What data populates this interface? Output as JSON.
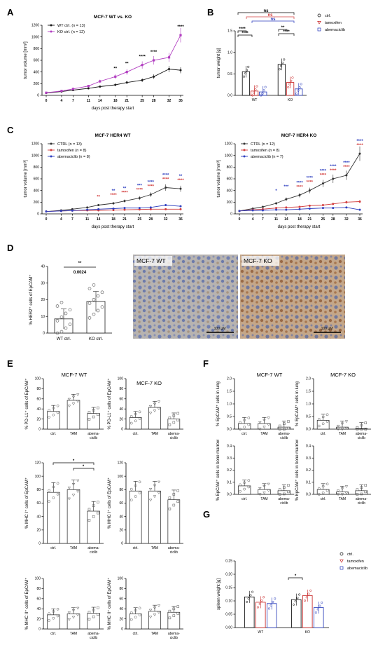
{
  "panels": {
    "A": "A",
    "B": "B",
    "C": "C",
    "D": "D",
    "E": "E",
    "F": "F",
    "G": "G"
  },
  "colors": {
    "wt": "#1a1a1a",
    "ko": "#b23fc1",
    "ctrl": "#333333",
    "tam": "#d23c3c",
    "abema": "#2e3fbf",
    "bar_ctrl": "#000000",
    "bar_tam": "#c51a1a",
    "bar_abema": "#1f33b8",
    "ns_black": "#000000",
    "ns_red": "#d23c3c",
    "ns_blue": "#2e3fbf"
  },
  "stars": {
    "s2": "**",
    "s4": "****",
    "s1": "*",
    "s3": "***",
    "ns": "ns"
  },
  "micrographs": [
    {
      "label": "MCF-7 WT",
      "scale": "100 µM"
    },
    {
      "label": "MCF-7 KO",
      "scale": "100 µM"
    }
  ],
  "chart_data": [
    {
      "id": "A",
      "type": "line",
      "title": "MCF-7 WT vs. KO",
      "xlabel": "days post therapy start",
      "ylabel": "tumor volume [mm³]",
      "x": [
        0,
        4,
        7,
        11,
        14,
        18,
        21,
        25,
        28,
        32,
        35
      ],
      "xticks": [
        "0",
        "4",
        "7",
        "11",
        "14",
        "18",
        "21",
        "25",
        "28",
        "32",
        "35"
      ],
      "ylim": [
        0,
        1200
      ],
      "yticks": [
        "0",
        "200",
        "400",
        "600",
        "800",
        "1000",
        "1200"
      ],
      "series": [
        {
          "name": "WT ctrl. (n = 13)",
          "values": [
            40,
            65,
            90,
            120,
            150,
            180,
            220,
            260,
            320,
            450,
            430
          ]
        },
        {
          "name": "KO ctrl. (n = 12)",
          "values": [
            45,
            75,
            110,
            160,
            240,
            320,
            400,
            520,
            600,
            650,
            1030
          ]
        }
      ],
      "significance": [
        {
          "x": 18,
          "label": "**"
        },
        {
          "x": 21,
          "label": "**"
        },
        {
          "x": 25,
          "label": "****"
        },
        {
          "x": 28,
          "label": "****"
        },
        {
          "x": 35,
          "label": "****"
        }
      ]
    },
    {
      "id": "B",
      "type": "bar",
      "ylabel": "tumor weight [g]",
      "categories": [
        "WT",
        "KO"
      ],
      "ylim": [
        0,
        1.5
      ],
      "yticks": [
        "0.0",
        "0.5",
        "1.0",
        "1.5"
      ],
      "series": [
        {
          "name": "ctrl.",
          "values": [
            0.55,
            0.72
          ]
        },
        {
          "name": "tamoxifen",
          "values": [
            0.1,
            0.3
          ]
        },
        {
          "name": "abemaciclib",
          "values": [
            0.08,
            0.15
          ]
        }
      ],
      "brackets": [
        "ns",
        "ns",
        "ns",
        "****",
        "****",
        "**",
        "****"
      ]
    },
    {
      "id": "C1",
      "type": "line",
      "title": "MCF-7 HER4 WT",
      "xlabel": "days post therapy start",
      "ylabel": "tumor volume [mm³]",
      "x": [
        0,
        4,
        7,
        11,
        14,
        18,
        21,
        25,
        28,
        32,
        36
      ],
      "xticks": [
        "0",
        "4",
        "7",
        "11",
        "14",
        "18",
        "21",
        "25",
        "28",
        "32",
        "36"
      ],
      "ylim": [
        0,
        1200
      ],
      "yticks": [
        "0",
        "200",
        "400",
        "600",
        "800",
        "1000",
        "1200"
      ],
      "series": [
        {
          "name": "CTRL (n = 13)",
          "values": [
            40,
            60,
            80,
            110,
            150,
            180,
            220,
            270,
            330,
            450,
            430
          ]
        },
        {
          "name": "tamoxifen (n = 8)",
          "values": [
            40,
            50,
            55,
            60,
            60,
            65,
            70,
            75,
            80,
            80,
            80
          ]
        },
        {
          "name": "abemaciclib (n = 8)",
          "values": [
            40,
            50,
            55,
            70,
            80,
            90,
            100,
            100,
            110,
            150,
            130
          ]
        }
      ],
      "significance_blue": [
        {
          "x": 18,
          "label": "**"
        },
        {
          "x": 21,
          "label": "**"
        },
        {
          "x": 25,
          "label": "***"
        },
        {
          "x": 28,
          "label": "****"
        },
        {
          "x": 32,
          "label": "****"
        },
        {
          "x": 36,
          "label": "**"
        }
      ],
      "significance_red": [
        {
          "x": 14,
          "label": "**"
        },
        {
          "x": 18,
          "label": "****"
        },
        {
          "x": 21,
          "label": "****"
        },
        {
          "x": 25,
          "label": "****"
        },
        {
          "x": 28,
          "label": "****"
        },
        {
          "x": 32,
          "label": "****"
        },
        {
          "x": 36,
          "label": "****"
        }
      ]
    },
    {
      "id": "C2",
      "type": "line",
      "title": "MCF-7 HER4 KO",
      "xlabel": "days post therapy start",
      "ylabel": "tumor volume [mm³]",
      "x": [
        0,
        4,
        7,
        11,
        14,
        18,
        21,
        25,
        28,
        32,
        36
      ],
      "xticks": [
        "0",
        "4",
        "7",
        "11",
        "14",
        "18",
        "21",
        "25",
        "28",
        "32",
        "36"
      ],
      "ylim": [
        0,
        1200
      ],
      "yticks": [
        "0",
        "200",
        "400",
        "600",
        "800",
        "1000",
        "1200"
      ],
      "series": [
        {
          "name": "CTRL (n = 12)",
          "values": [
            50,
            90,
            120,
            180,
            250,
            320,
            400,
            520,
            600,
            660,
            1030
          ]
        },
        {
          "name": "tamoxifen (n = 8)",
          "values": [
            50,
            70,
            80,
            100,
            110,
            120,
            140,
            150,
            170,
            200,
            210
          ]
        },
        {
          "name": "abemaciclib (n = 7)",
          "values": [
            50,
            60,
            60,
            70,
            70,
            80,
            90,
            100,
            100,
            110,
            70
          ]
        }
      ],
      "significance_blue": [
        {
          "x": 11,
          "label": "*"
        },
        {
          "x": 14,
          "label": "***"
        },
        {
          "x": 18,
          "label": "****"
        },
        {
          "x": 21,
          "label": "****"
        },
        {
          "x": 25,
          "label": "****"
        },
        {
          "x": 28,
          "label": "****"
        },
        {
          "x": 32,
          "label": "****"
        },
        {
          "x": 36,
          "label": "****"
        }
      ],
      "significance_red": [
        {
          "x": 18,
          "label": "****"
        },
        {
          "x": 21,
          "label": "****"
        },
        {
          "x": 25,
          "label": "****"
        },
        {
          "x": 28,
          "label": "****"
        },
        {
          "x": 32,
          "label": "****"
        },
        {
          "x": 36,
          "label": "****"
        }
      ]
    },
    {
      "id": "D",
      "type": "bar",
      "ylabel": "% HER2⁺ cells of EpCAM⁺",
      "categories": [
        "WT ctrl.",
        "KO ctrl."
      ],
      "values": [
        8.5,
        19
      ],
      "ylim": [
        0,
        40
      ],
      "yticks": [
        "0",
        "10",
        "20",
        "30",
        "40"
      ],
      "significance": {
        "stars": "**",
        "p": "0.0024"
      }
    },
    {
      "id": "E1",
      "type": "bar",
      "title": "MCF-7 WT",
      "ylabel": "% PD-L1⁺ cells of EpCAM⁺",
      "categories": [
        "ctrl.",
        "TAM",
        "abema-ciclib"
      ],
      "values": [
        35,
        57,
        31
      ],
      "ylim": [
        0,
        100
      ],
      "yticks": [
        "0",
        "20",
        "40",
        "60",
        "80",
        "100"
      ]
    },
    {
      "id": "E2",
      "type": "bar",
      "title": "MCF-7 KO",
      "ylabel": "% PD-L1⁺ cells of EpCAM⁺",
      "categories": [
        "ctrl.",
        "TAM",
        "abema-ciclib"
      ],
      "values": [
        23,
        43,
        20
      ],
      "ylim": [
        0,
        100
      ],
      "yticks": [
        "0",
        "20",
        "40",
        "60",
        "80",
        "100"
      ]
    },
    {
      "id": "E3",
      "type": "bar",
      "ylabel": "% MHC I⁺ cells of EpCAM⁺",
      "categories": [
        "ctrl.",
        "TAM",
        "abema-ciclib"
      ],
      "values": [
        76,
        80,
        48
      ],
      "ylim": [
        0,
        120
      ],
      "yticks": [
        "0",
        "20",
        "40",
        "60",
        "80",
        "100",
        "120"
      ],
      "brackets": [
        "*",
        "*"
      ]
    },
    {
      "id": "E4",
      "type": "bar",
      "ylabel": "% MHC I⁺ cells of EpCAM⁺",
      "categories": [
        "ctrl.",
        "TAM",
        "abema-ciclib"
      ],
      "values": [
        78,
        78,
        65
      ],
      "ylim": [
        0,
        120
      ],
      "yticks": [
        "0",
        "20",
        "40",
        "60",
        "80",
        "100",
        "120"
      ]
    },
    {
      "id": "E5",
      "type": "bar",
      "ylabel": "% MHC II⁺ cells of EpCAM⁺",
      "categories": [
        "ctrl.",
        "TAM",
        "abema-ciclib"
      ],
      "values": [
        28,
        30,
        31
      ],
      "ylim": [
        0,
        100
      ],
      "yticks": [
        "0",
        "20",
        "40",
        "60",
        "80",
        "100"
      ]
    },
    {
      "id": "E6",
      "type": "bar",
      "ylabel": "% MHC II⁺ cells of EpCAM⁺",
      "categories": [
        "ctrl.",
        "TAM",
        "abema-ciclib"
      ],
      "values": [
        30,
        35,
        33
      ],
      "ylim": [
        0,
        100
      ],
      "yticks": [
        "0",
        "20",
        "40",
        "60",
        "80",
        "100"
      ]
    },
    {
      "id": "F1",
      "type": "bar",
      "title": "MCF-7 WT",
      "ylabel": "% EpCAM⁺ cells in lung",
      "categories": [
        "ctrl.",
        "TAM",
        "abema-ciclib"
      ],
      "values": [
        0.22,
        0.22,
        0.08
      ],
      "ylim": [
        0,
        2.0
      ],
      "yticks": [
        "0.0",
        "0.5",
        "1.0",
        "1.5",
        "2.0"
      ]
    },
    {
      "id": "F2",
      "type": "bar",
      "title": "MCF-7 KO",
      "ylabel": "% EpCAM⁺ cells in lung",
      "categories": [
        "ctrl.",
        "TAM",
        "abema-ciclib"
      ],
      "values": [
        0.35,
        0.08,
        0.02
      ],
      "ylim": [
        0,
        2.0
      ],
      "yticks": [
        "0.0",
        "0.5",
        "1.0",
        "1.5",
        "2.0"
      ]
    },
    {
      "id": "F3",
      "type": "bar",
      "ylabel": "% EpCAM⁺ cells in bone marrow",
      "categories": [
        "ctrl.",
        "TAM",
        "abema-ciclib"
      ],
      "values": [
        0.07,
        0.04,
        0.03
      ],
      "ylim": [
        0,
        0.4
      ],
      "yticks": [
        "0.0",
        "0.1",
        "0.2",
        "0.3",
        "0.4"
      ]
    },
    {
      "id": "F4",
      "type": "bar",
      "ylabel": "% EpCAM⁺ cells in bone marrow",
      "categories": [
        "ctrl.",
        "TAM",
        "abema-ciclib"
      ],
      "values": [
        0.04,
        0.02,
        0.03
      ],
      "ylim": [
        0,
        0.4
      ],
      "yticks": [
        "0.0",
        "0.1",
        "0.2",
        "0.3",
        "0.4"
      ]
    },
    {
      "id": "G",
      "type": "bar",
      "ylabel": "spleen weight [g]",
      "categories": [
        "WT",
        "KO"
      ],
      "ylim": [
        0,
        0.25
      ],
      "yticks": [
        "0.00",
        "0.05",
        "0.10",
        "0.15",
        "0.20",
        "0.25"
      ],
      "series": [
        {
          "name": "ctrl.",
          "values": [
            0.115,
            0.105
          ]
        },
        {
          "name": "tamoxifen",
          "values": [
            0.095,
            0.12
          ]
        },
        {
          "name": "abemaciclib",
          "values": [
            0.09,
            0.075
          ]
        }
      ],
      "brackets": [
        "*"
      ]
    }
  ]
}
